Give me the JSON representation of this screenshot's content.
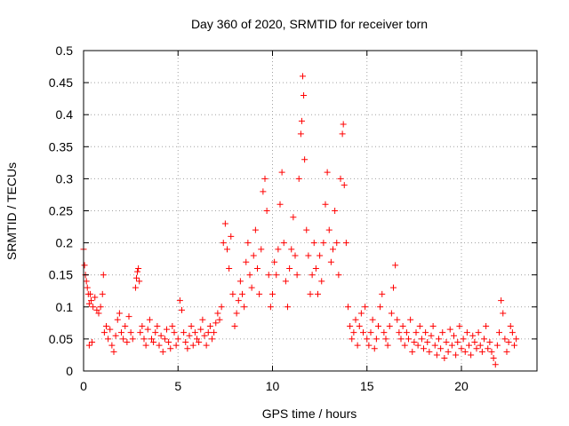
{
  "chart_data": {
    "type": "scatter",
    "title": "Day 360 of 2020, SRMTID for receiver torn",
    "xlabel": "GPS time / hours",
    "ylabel": "SRMTID / TECUs",
    "xlim": [
      0,
      24
    ],
    "ylim": [
      0,
      0.5
    ],
    "xticks": [
      0,
      5,
      10,
      15,
      20
    ],
    "xtick_labels": [
      "0",
      "5",
      "10",
      "15",
      "20"
    ],
    "yticks": [
      0,
      0.05,
      0.1,
      0.15,
      0.2,
      0.25,
      0.3,
      0.35,
      0.4,
      0.45,
      0.5
    ],
    "ytick_labels": [
      "0",
      "0.05",
      "0.1",
      "0.15",
      "0.2",
      "0.25",
      "0.3",
      "0.35",
      "0.4",
      "0.45",
      "0.5"
    ],
    "grid": true,
    "marker": "plus",
    "point_color": "#ff0000",
    "series": [
      {
        "points": [
          [
            0.0,
            0.19
          ],
          [
            0.05,
            0.165
          ],
          [
            0.1,
            0.15
          ],
          [
            0.15,
            0.14
          ],
          [
            0.2,
            0.13
          ],
          [
            0.25,
            0.12
          ],
          [
            0.3,
            0.105
          ],
          [
            0.35,
            0.12
          ],
          [
            0.4,
            0.11
          ],
          [
            0.5,
            0.1
          ],
          [
            0.6,
            0.115
          ],
          [
            0.7,
            0.095
          ],
          [
            0.8,
            0.09
          ],
          [
            0.9,
            0.1
          ],
          [
            1.0,
            0.12
          ],
          [
            1.05,
            0.15
          ],
          [
            0.3,
            0.04
          ],
          [
            0.45,
            0.045
          ],
          [
            1.1,
            0.06
          ],
          [
            1.2,
            0.07
          ],
          [
            1.3,
            0.05
          ],
          [
            1.4,
            0.065
          ],
          [
            1.5,
            0.04
          ],
          [
            1.6,
            0.03
          ],
          [
            1.7,
            0.055
          ],
          [
            1.8,
            0.08
          ],
          [
            1.9,
            0.09
          ],
          [
            2.0,
            0.06
          ],
          [
            2.1,
            0.05
          ],
          [
            2.2,
            0.07
          ],
          [
            2.3,
            0.045
          ],
          [
            2.4,
            0.085
          ],
          [
            2.5,
            0.06
          ],
          [
            2.6,
            0.05
          ],
          [
            2.75,
            0.13
          ],
          [
            2.8,
            0.145
          ],
          [
            2.85,
            0.155
          ],
          [
            2.9,
            0.16
          ],
          [
            2.95,
            0.14
          ],
          [
            3.0,
            0.06
          ],
          [
            3.1,
            0.07
          ],
          [
            3.2,
            0.05
          ],
          [
            3.3,
            0.04
          ],
          [
            3.4,
            0.065
          ],
          [
            3.5,
            0.08
          ],
          [
            3.6,
            0.05
          ],
          [
            3.7,
            0.045
          ],
          [
            3.8,
            0.06
          ],
          [
            3.9,
            0.07
          ],
          [
            4.0,
            0.04
          ],
          [
            4.1,
            0.055
          ],
          [
            4.2,
            0.03
          ],
          [
            4.3,
            0.05
          ],
          [
            4.4,
            0.065
          ],
          [
            4.5,
            0.045
          ],
          [
            4.6,
            0.035
          ],
          [
            4.7,
            0.07
          ],
          [
            4.8,
            0.06
          ],
          [
            4.9,
            0.04
          ],
          [
            5.0,
            0.05
          ],
          [
            5.1,
            0.11
          ],
          [
            5.2,
            0.095
          ],
          [
            5.3,
            0.06
          ],
          [
            5.4,
            0.045
          ],
          [
            5.5,
            0.035
          ],
          [
            5.6,
            0.055
          ],
          [
            5.7,
            0.07
          ],
          [
            5.8,
            0.04
          ],
          [
            5.9,
            0.06
          ],
          [
            6.0,
            0.05
          ],
          [
            6.1,
            0.045
          ],
          [
            6.2,
            0.065
          ],
          [
            6.3,
            0.08
          ],
          [
            6.4,
            0.055
          ],
          [
            6.5,
            0.04
          ],
          [
            6.6,
            0.06
          ],
          [
            6.7,
            0.07
          ],
          [
            6.8,
            0.05
          ],
          [
            6.9,
            0.06
          ],
          [
            7.0,
            0.075
          ],
          [
            7.1,
            0.09
          ],
          [
            7.2,
            0.08
          ],
          [
            7.3,
            0.1
          ],
          [
            7.4,
            0.2
          ],
          [
            7.5,
            0.23
          ],
          [
            7.6,
            0.19
          ],
          [
            7.7,
            0.16
          ],
          [
            7.8,
            0.21
          ],
          [
            7.9,
            0.12
          ],
          [
            8.0,
            0.07
          ],
          [
            8.1,
            0.09
          ],
          [
            8.2,
            0.11
          ],
          [
            8.3,
            0.14
          ],
          [
            8.4,
            0.12
          ],
          [
            8.5,
            0.1
          ],
          [
            8.6,
            0.17
          ],
          [
            8.7,
            0.2
          ],
          [
            8.8,
            0.15
          ],
          [
            8.9,
            0.13
          ],
          [
            9.0,
            0.18
          ],
          [
            9.1,
            0.22
          ],
          [
            9.2,
            0.16
          ],
          [
            9.3,
            0.12
          ],
          [
            9.4,
            0.19
          ],
          [
            9.5,
            0.28
          ],
          [
            9.6,
            0.3
          ],
          [
            9.7,
            0.25
          ],
          [
            9.8,
            0.15
          ],
          [
            9.9,
            0.1
          ],
          [
            10.0,
            0.12
          ],
          [
            10.1,
            0.17
          ],
          [
            10.2,
            0.15
          ],
          [
            10.3,
            0.19
          ],
          [
            10.4,
            0.26
          ],
          [
            10.5,
            0.31
          ],
          [
            10.6,
            0.2
          ],
          [
            10.7,
            0.14
          ],
          [
            10.8,
            0.1
          ],
          [
            10.9,
            0.16
          ],
          [
            11.0,
            0.19
          ],
          [
            11.1,
            0.24
          ],
          [
            11.2,
            0.18
          ],
          [
            11.3,
            0.15
          ],
          [
            11.4,
            0.3
          ],
          [
            11.5,
            0.37
          ],
          [
            11.55,
            0.39
          ],
          [
            11.6,
            0.46
          ],
          [
            11.65,
            0.43
          ],
          [
            11.7,
            0.33
          ],
          [
            11.8,
            0.22
          ],
          [
            11.9,
            0.18
          ],
          [
            12.0,
            0.12
          ],
          [
            12.1,
            0.15
          ],
          [
            12.2,
            0.2
          ],
          [
            12.3,
            0.16
          ],
          [
            12.4,
            0.12
          ],
          [
            12.5,
            0.18
          ],
          [
            12.6,
            0.14
          ],
          [
            12.7,
            0.2
          ],
          [
            12.8,
            0.26
          ],
          [
            12.9,
            0.31
          ],
          [
            13.0,
            0.22
          ],
          [
            13.1,
            0.17
          ],
          [
            13.2,
            0.19
          ],
          [
            13.3,
            0.25
          ],
          [
            13.4,
            0.2
          ],
          [
            13.5,
            0.15
          ],
          [
            13.6,
            0.3
          ],
          [
            13.7,
            0.37
          ],
          [
            13.75,
            0.385
          ],
          [
            13.8,
            0.29
          ],
          [
            13.9,
            0.2
          ],
          [
            14.0,
            0.1
          ],
          [
            14.1,
            0.07
          ],
          [
            14.2,
            0.05
          ],
          [
            14.3,
            0.06
          ],
          [
            14.4,
            0.08
          ],
          [
            14.5,
            0.04
          ],
          [
            14.6,
            0.07
          ],
          [
            14.7,
            0.09
          ],
          [
            14.8,
            0.06
          ],
          [
            14.9,
            0.1
          ],
          [
            15.0,
            0.05
          ],
          [
            15.1,
            0.04
          ],
          [
            15.2,
            0.06
          ],
          [
            15.3,
            0.08
          ],
          [
            15.4,
            0.035
          ],
          [
            15.5,
            0.05
          ],
          [
            15.6,
            0.07
          ],
          [
            15.7,
            0.1
          ],
          [
            15.8,
            0.12
          ],
          [
            15.9,
            0.06
          ],
          [
            16.0,
            0.05
          ],
          [
            16.1,
            0.04
          ],
          [
            16.2,
            0.07
          ],
          [
            16.3,
            0.09
          ],
          [
            16.4,
            0.13
          ],
          [
            16.5,
            0.165
          ],
          [
            16.6,
            0.08
          ],
          [
            16.7,
            0.06
          ],
          [
            16.8,
            0.05
          ],
          [
            16.9,
            0.07
          ],
          [
            17.0,
            0.04
          ],
          [
            17.1,
            0.06
          ],
          [
            17.2,
            0.05
          ],
          [
            17.3,
            0.08
          ],
          [
            17.4,
            0.03
          ],
          [
            17.5,
            0.045
          ],
          [
            17.6,
            0.06
          ],
          [
            17.7,
            0.04
          ],
          [
            17.8,
            0.07
          ],
          [
            17.9,
            0.05
          ],
          [
            18.0,
            0.035
          ],
          [
            18.1,
            0.06
          ],
          [
            18.2,
            0.045
          ],
          [
            18.3,
            0.03
          ],
          [
            18.4,
            0.055
          ],
          [
            18.5,
            0.07
          ],
          [
            18.6,
            0.04
          ],
          [
            18.7,
            0.025
          ],
          [
            18.8,
            0.05
          ],
          [
            18.9,
            0.035
          ],
          [
            19.0,
            0.06
          ],
          [
            19.1,
            0.02
          ],
          [
            19.2,
            0.045
          ],
          [
            19.3,
            0.03
          ],
          [
            19.4,
            0.065
          ],
          [
            19.5,
            0.04
          ],
          [
            19.6,
            0.055
          ],
          [
            19.7,
            0.025
          ],
          [
            19.8,
            0.045
          ],
          [
            19.9,
            0.07
          ],
          [
            20.0,
            0.035
          ],
          [
            20.1,
            0.05
          ],
          [
            20.2,
            0.03
          ],
          [
            20.3,
            0.06
          ],
          [
            20.4,
            0.04
          ],
          [
            20.5,
            0.025
          ],
          [
            20.6,
            0.055
          ],
          [
            20.7,
            0.045
          ],
          [
            20.8,
            0.035
          ],
          [
            20.9,
            0.06
          ],
          [
            21.0,
            0.04
          ],
          [
            21.1,
            0.03
          ],
          [
            21.2,
            0.05
          ],
          [
            21.3,
            0.07
          ],
          [
            21.4,
            0.035
          ],
          [
            21.5,
            0.045
          ],
          [
            21.6,
            0.03
          ],
          [
            21.7,
            0.02
          ],
          [
            21.8,
            0.01
          ],
          [
            21.9,
            0.04
          ],
          [
            22.0,
            0.06
          ],
          [
            22.1,
            0.11
          ],
          [
            22.2,
            0.09
          ],
          [
            22.3,
            0.05
          ],
          [
            22.4,
            0.03
          ],
          [
            22.5,
            0.045
          ],
          [
            22.6,
            0.07
          ],
          [
            22.7,
            0.06
          ],
          [
            22.8,
            0.04
          ],
          [
            22.9,
            0.05
          ]
        ]
      }
    ]
  }
}
